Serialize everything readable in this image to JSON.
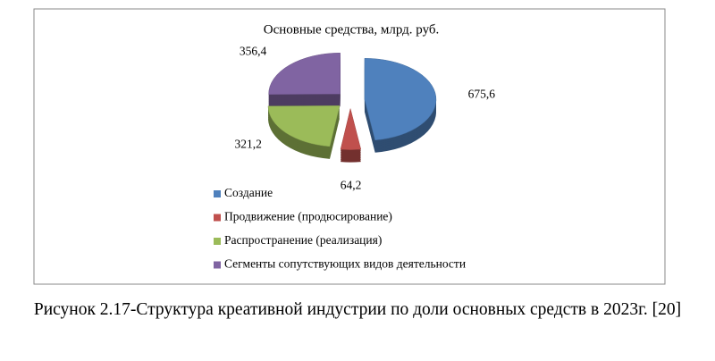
{
  "chart_data": {
    "type": "pie",
    "title": "Основные средства, млрд. руб.",
    "categories": [
      "Создание",
      "Продвижение (продюсирование)",
      "Распространение (реализация)",
      "Сегменты сопутствующих видов деятельности"
    ],
    "values": [
      675.6,
      64.2,
      321.2,
      356.4
    ],
    "value_labels": [
      "675,6",
      "64,2",
      "321,2",
      "356,4"
    ],
    "colors": [
      "#4f81bd",
      "#c0504d",
      "#9bbb59",
      "#8064a2"
    ],
    "legend": "bottom"
  },
  "caption": "Рисунок 2.17-Структура креативной индустрии по доли основных средств в 2023г. [20]"
}
